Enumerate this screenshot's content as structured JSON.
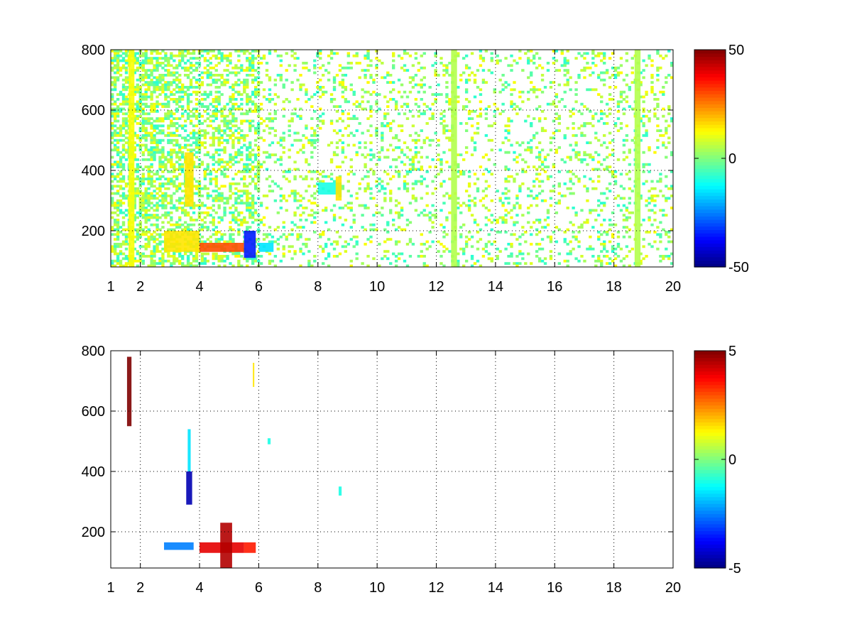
{
  "chart_data": [
    {
      "type": "heatmap",
      "title": "",
      "xlabel": "",
      "ylabel": "",
      "xlim": [
        1,
        20
      ],
      "ylim": [
        80,
        800
      ],
      "xticks": [
        1,
        2,
        4,
        6,
        8,
        10,
        12,
        14,
        16,
        18,
        20
      ],
      "yticks": [
        200,
        400,
        600,
        800
      ],
      "grid": true,
      "colormap": "jet",
      "clim": [
        -50,
        50
      ],
      "colorbar_ticks": [
        -50,
        0,
        50
      ],
      "description_regions": [
        {
          "x": [
            1.6,
            1.8
          ],
          "y": [
            80,
            800
          ],
          "value": 12
        },
        {
          "x": [
            3.5,
            3.8
          ],
          "y": [
            280,
            460
          ],
          "value": 15
        },
        {
          "x": [
            2.8,
            4.0
          ],
          "y": [
            130,
            200
          ],
          "value": 15
        },
        {
          "x": [
            4.0,
            5.5
          ],
          "y": [
            130,
            160
          ],
          "value": 30
        },
        {
          "x": [
            5.5,
            5.9
          ],
          "y": [
            110,
            200
          ],
          "value": -35
        },
        {
          "x": [
            6.0,
            6.5
          ],
          "y": [
            130,
            160
          ],
          "value": -15
        },
        {
          "x": [
            8.0,
            8.8
          ],
          "y": [
            320,
            360
          ],
          "value": -10
        },
        {
          "x": [
            8.6,
            8.8
          ],
          "y": [
            300,
            380
          ],
          "value": 15
        },
        {
          "x": [
            12.5,
            12.7
          ],
          "y": [
            80,
            800
          ],
          "value": 5
        },
        {
          "x": [
            18.7,
            18.9
          ],
          "y": [
            80,
            800
          ],
          "value": 5
        }
      ]
    },
    {
      "type": "heatmap",
      "title": "",
      "xlabel": "",
      "ylabel": "",
      "xlim": [
        1,
        20
      ],
      "ylim": [
        80,
        800
      ],
      "xticks": [
        1,
        2,
        4,
        6,
        8,
        10,
        12,
        14,
        16,
        18,
        20
      ],
      "yticks": [
        200,
        400,
        600,
        800
      ],
      "grid": true,
      "colormap": "jet",
      "clim": [
        -5,
        5
      ],
      "colorbar_ticks": [
        -5,
        0,
        5
      ],
      "description_regions": [
        {
          "x": [
            1.55,
            1.7
          ],
          "y": [
            550,
            780
          ],
          "value": 5
        },
        {
          "x": [
            3.55,
            3.75
          ],
          "y": [
            290,
            400
          ],
          "value": -4.5
        },
        {
          "x": [
            3.6,
            3.7
          ],
          "y": [
            400,
            540
          ],
          "value": -1.5
        },
        {
          "x": [
            2.8,
            3.8
          ],
          "y": [
            140,
            165
          ],
          "value": -2.5
        },
        {
          "x": [
            4.0,
            5.5
          ],
          "y": [
            130,
            165
          ],
          "value": 4
        },
        {
          "x": [
            4.7,
            5.1
          ],
          "y": [
            80,
            230
          ],
          "value": 4.5
        },
        {
          "x": [
            5.5,
            5.9
          ],
          "y": [
            130,
            165
          ],
          "value": 3.5
        },
        {
          "x": [
            5.8,
            5.85
          ],
          "y": [
            680,
            760
          ],
          "value": 1.5
        },
        {
          "x": [
            6.3,
            6.4
          ],
          "y": [
            490,
            510
          ],
          "value": -1
        },
        {
          "x": [
            8.7,
            8.8
          ],
          "y": [
            320,
            350
          ],
          "value": -1
        }
      ]
    }
  ]
}
